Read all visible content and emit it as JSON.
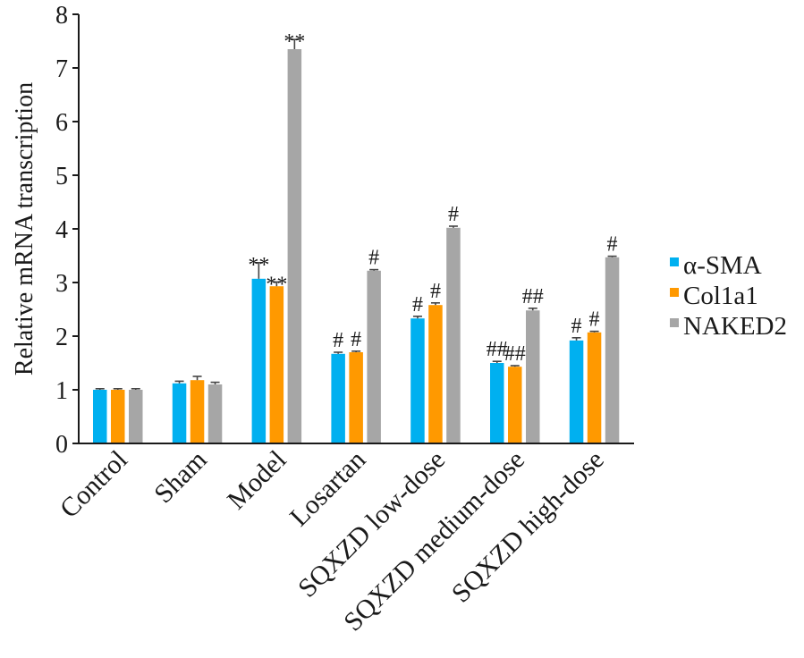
{
  "chart_data": {
    "type": "bar",
    "title": "",
    "xlabel": "",
    "ylabel": "Relative mRNA transcription",
    "ylim": [
      0,
      8
    ],
    "yticks": [
      0,
      1,
      2,
      3,
      4,
      5,
      6,
      7,
      8
    ],
    "grid": false,
    "legend_position": "right",
    "categories": [
      "Control",
      "Sham",
      "Model",
      "Losartan",
      "SQXZD low-dose",
      "SQXZD medium-dose",
      "SQXZD high-dose"
    ],
    "series": [
      {
        "name": "α-SMA",
        "color": "#00b0f0",
        "values": [
          1.0,
          1.12,
          3.07,
          1.67,
          2.33,
          1.5,
          1.92
        ],
        "errors": [
          0.02,
          0.04,
          0.3,
          0.03,
          0.04,
          0.03,
          0.05
        ],
        "annotations": [
          "",
          "",
          "**",
          "#",
          "#",
          "##",
          "#"
        ]
      },
      {
        "name": "Col1a1",
        "color": "#ff9900",
        "values": [
          1.0,
          1.18,
          2.93,
          1.7,
          2.58,
          1.43,
          2.07
        ],
        "errors": [
          0.02,
          0.07,
          0.08,
          0.02,
          0.04,
          0.02,
          0.02
        ],
        "annotations": [
          "",
          "",
          "**",
          "#",
          "#",
          "##",
          "#"
        ]
      },
      {
        "name": "NAKED2",
        "color": "#a6a6a6",
        "values": [
          1.0,
          1.1,
          7.35,
          3.22,
          4.02,
          2.48,
          3.47
        ],
        "errors": [
          0.02,
          0.04,
          0.18,
          0.02,
          0.03,
          0.04,
          0.02
        ],
        "annotations": [
          "",
          "",
          "**",
          "#",
          "#",
          "##",
          "#"
        ]
      }
    ]
  }
}
